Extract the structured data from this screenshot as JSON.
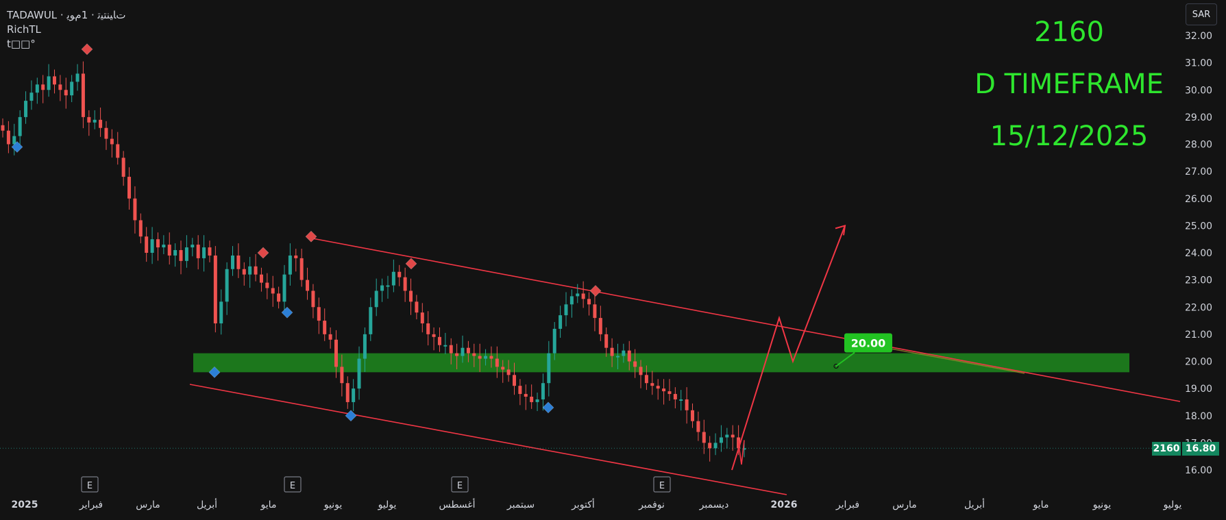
{
  "header": {
    "symbol_line": "TADAWUL · ﺕﺎﻴﻨﺘﻴﺗ · 1ﻡﻮﻳ",
    "indicator_name": "RichTL",
    "indicator_sub": "t□□°",
    "currency_label": "SAR"
  },
  "annotations": {
    "symbol": "2160",
    "timeframe": "D TIMEFRAME",
    "date": "15/12/2025",
    "target_label": "20.00"
  },
  "price_axis": {
    "ticks": [
      "32.00",
      "31.00",
      "30.00",
      "29.00",
      "28.00",
      "27.00",
      "26.00",
      "25.00",
      "24.00",
      "23.00",
      "22.00",
      "21.00",
      "20.00",
      "19.00",
      "18.00",
      "17.00",
      "16.00"
    ],
    "last_price": "16.80",
    "last_symbol": "2160"
  },
  "time_axis": {
    "labels": [
      {
        "t": "2025",
        "bold": true
      },
      {
        "t": "فبراير"
      },
      {
        "t": "مارس"
      },
      {
        "t": "أبريل"
      },
      {
        "t": "مايو"
      },
      {
        "t": "يونيو"
      },
      {
        "t": "يوليو"
      },
      {
        "t": "أغسطس"
      },
      {
        "t": "سبتمبر"
      },
      {
        "t": "أكتوبر"
      },
      {
        "t": "نوفمبر"
      },
      {
        "t": "ديسمبر"
      },
      {
        "t": "2026",
        "bold": true
      },
      {
        "t": "فبراير"
      },
      {
        "t": "مارس"
      },
      {
        "t": "أبريل"
      },
      {
        "t": "مايو"
      },
      {
        "t": "يونيو"
      },
      {
        "t": "يوليو"
      }
    ],
    "earnings_marker": "E"
  },
  "colors": {
    "background": "#131313",
    "up_candle": "#26a69a",
    "down_candle": "#ef5350",
    "trendline": "#f23645",
    "zone": "#1f8a1f",
    "annotation": "#2ee62e",
    "pivot_high": "#e04848",
    "pivot_low": "#2c7fd6"
  },
  "chart_data": {
    "type": "candlestick",
    "ylim": [
      15.6,
      32.4
    ],
    "price_series_daily_close_approx": [
      28.5,
      28.0,
      28.3,
      29.0,
      29.6,
      29.9,
      30.2,
      30.0,
      30.5,
      30.2,
      30.0,
      29.8,
      30.3,
      30.6,
      29.0,
      28.8,
      28.9,
      28.6,
      28.2,
      28.0,
      27.5,
      26.8,
      26.0,
      25.2,
      24.6,
      24.0,
      24.5,
      24.2,
      24.3,
      23.9,
      24.1,
      23.7,
      24.2,
      24.3,
      23.8,
      24.2,
      23.9,
      21.4,
      22.2,
      23.4,
      23.9,
      23.4,
      23.2,
      23.5,
      23.2,
      22.9,
      22.7,
      22.5,
      22.2,
      23.2,
      23.9,
      23.8,
      23.0,
      22.6,
      22.0,
      21.5,
      21.0,
      20.8,
      19.8,
      19.2,
      18.5,
      19.0,
      20.1,
      21.0,
      22.0,
      22.6,
      22.8,
      22.8,
      23.3,
      23.1,
      22.6,
      22.2,
      21.8,
      21.4,
      21.0,
      20.9,
      20.6,
      20.6,
      20.3,
      20.2,
      20.5,
      20.3,
      20.2,
      20.1,
      20.2,
      20.1,
      19.8,
      19.7,
      19.5,
      19.1,
      18.8,
      18.7,
      18.5,
      18.6,
      19.2,
      20.3,
      21.2,
      21.7,
      22.1,
      22.4,
      22.5,
      22.3,
      22.1,
      21.6,
      21.0,
      20.5,
      20.2,
      20.2,
      20.4,
      20.0,
      19.8,
      19.5,
      19.2,
      19.1,
      19.0,
      18.9,
      18.8,
      18.6,
      18.6,
      18.2,
      17.8,
      17.4,
      17.0,
      16.8,
      17.0,
      17.2,
      17.3,
      17.2,
      16.8,
      16.8
    ],
    "pivot_highs": [
      31.5,
      24.0,
      24.6,
      23.6,
      22.6
    ],
    "pivot_lows": [
      27.9,
      21.8,
      19.6,
      18.0,
      18.3
    ],
    "support_zone": [
      19.6,
      20.3
    ],
    "channel_upper": {
      "start": 24.6,
      "end": 18.6
    },
    "channel_lower": {
      "start": 19.2,
      "end": 15.8
    },
    "projection_path": [
      16.0,
      21.6,
      20.0,
      25.0
    ],
    "target_price": 20.0,
    "last_close": 16.8
  }
}
